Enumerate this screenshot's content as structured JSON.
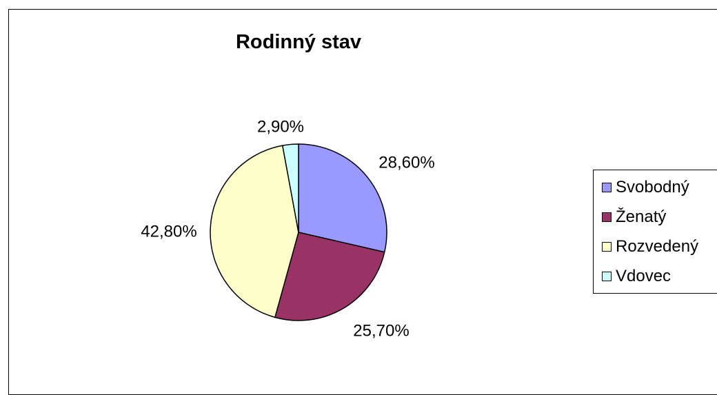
{
  "chart_data": {
    "type": "pie",
    "title": "Rodinný stav",
    "categories": [
      "Svobodný",
      "Ženatý",
      "Rozvedený",
      "Vdovec"
    ],
    "values": [
      28.6,
      25.7,
      42.8,
      2.9
    ],
    "data_labels": [
      "28,60%",
      "25,70%",
      "42,80%",
      "2,90%"
    ],
    "colors": [
      "#9999ff",
      "#993366",
      "#ffffcc",
      "#ccffff"
    ],
    "legend_position": "right"
  }
}
